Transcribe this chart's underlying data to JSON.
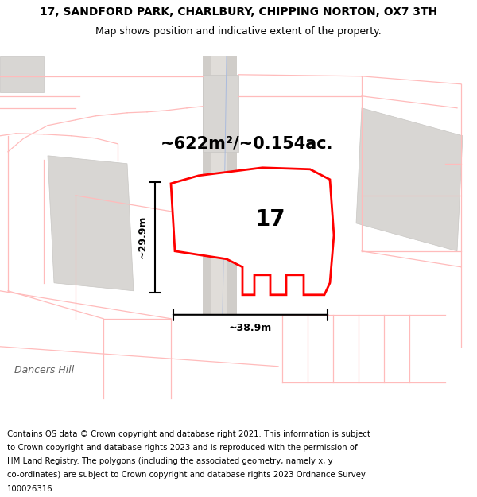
{
  "title_line1": "17, SANDFORD PARK, CHARLBURY, CHIPPING NORTON, OX7 3TH",
  "title_line2": "Map shows position and indicative extent of the property.",
  "area_text": "~622m²/~0.154ac.",
  "plot_number": "17",
  "dim_height": "~29.9m",
  "dim_width": "~38.9m",
  "street_label": "Dancers Hill",
  "footer_lines": [
    "Contains OS data © Crown copyright and database right 2021. This information is subject",
    "to Crown copyright and database rights 2023 and is reproduced with the permission of",
    "HM Land Registry. The polygons (including the associated geometry, namely x, y",
    "co-ordinates) are subject to Crown copyright and database rights 2023 Ordnance Survey",
    "100026316."
  ],
  "map_bg": "#ffffff",
  "red_color": "#ff0000",
  "light_pink": "#ffbbbb",
  "gray_bld": "#d8d6d3",
  "gray_bld_edge": "#c8c6c3",
  "road_gray": "#d0cdc9",
  "title_fs": 10,
  "subtitle_fs": 9,
  "footer_fs": 7.3,
  "area_fs": 15,
  "label_fs": 20,
  "dim_fs": 9,
  "street_fs": 9
}
